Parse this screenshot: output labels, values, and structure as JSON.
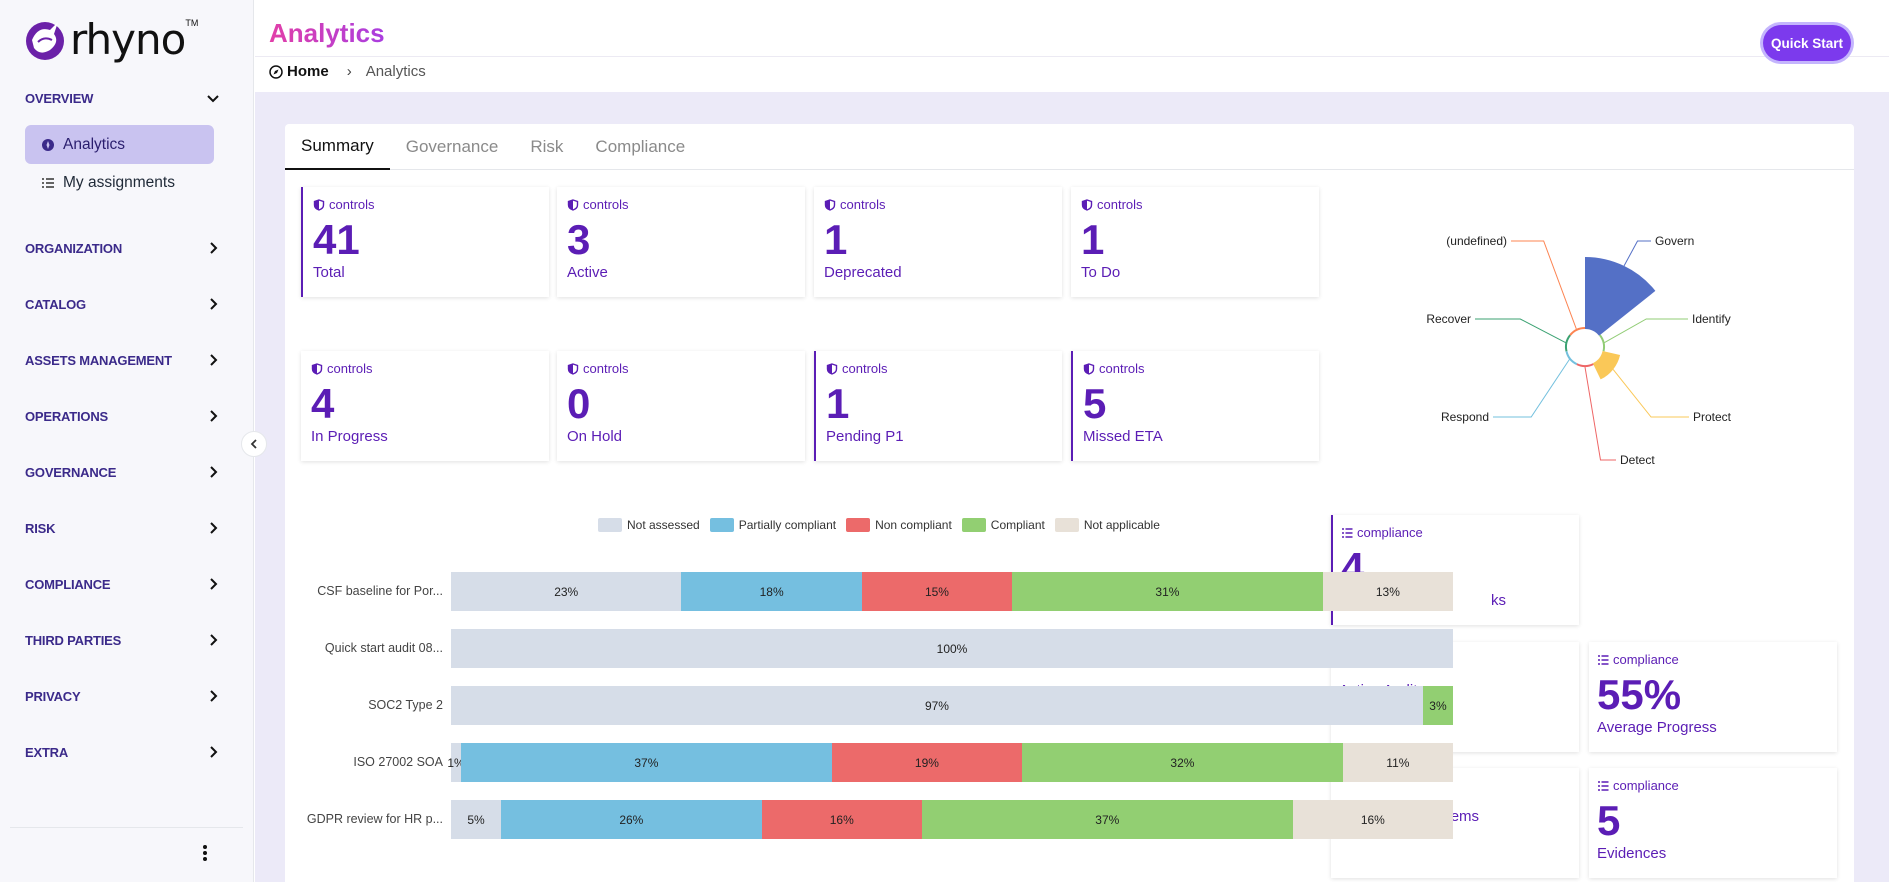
{
  "brand": {
    "name": "rhyno",
    "tm": "TM",
    "accent": "#7c3aed"
  },
  "sidebar": {
    "overview_label": "OVERVIEW",
    "items": [
      {
        "label": "Analytics",
        "active": true
      },
      {
        "label": "My assignments",
        "active": false
      }
    ],
    "sections": [
      "ORGANIZATION",
      "CATALOG",
      "ASSETS MANAGEMENT",
      "OPERATIONS",
      "GOVERNANCE",
      "RISK",
      "COMPLIANCE",
      "THIRD PARTIES",
      "PRIVACY",
      "EXTRA"
    ]
  },
  "header": {
    "title": "Analytics",
    "breadcrumb_home": "Home",
    "breadcrumb_separator": "›",
    "breadcrumb_current": "Analytics",
    "quick_start": "Quick Start"
  },
  "tabs": [
    "Summary",
    "Governance",
    "Risk",
    "Compliance"
  ],
  "control_kpis": [
    {
      "label": "controls",
      "value": "41",
      "sub": "Total"
    },
    {
      "label": "controls",
      "value": "3",
      "sub": "Active"
    },
    {
      "label": "controls",
      "value": "1",
      "sub": "Deprecated"
    },
    {
      "label": "controls",
      "value": "1",
      "sub": "To Do"
    },
    {
      "label": "controls",
      "value": "4",
      "sub": "In Progress"
    },
    {
      "label": "controls",
      "value": "0",
      "sub": "On Hold"
    },
    {
      "label": "controls",
      "value": "1",
      "sub": "Pending P1"
    },
    {
      "label": "controls",
      "value": "5",
      "sub": "Missed ETA"
    }
  ],
  "compliance_kpis": [
    {
      "label": "compliance",
      "value": "4",
      "sub": "ks"
    },
    {
      "label": "compliance",
      "value": "",
      "sub": "Active Audits"
    },
    {
      "label": "compliance",
      "value": "55%",
      "sub": "Average Progress"
    },
    {
      "label": "compliance",
      "value": "",
      "sub": "Non Compliant Items"
    },
    {
      "label": "compliance",
      "value": "5",
      "sub": "Evidences"
    }
  ],
  "chart_data": [
    {
      "type": "bar",
      "orientation": "horizontal-stacked-percent",
      "categories": [
        "CSF baseline for Por...",
        "Quick start audit 08...",
        "SOC2 Type 2",
        "ISO 27002 SOA",
        "GDPR review for HR p..."
      ],
      "series": [
        {
          "name": "Not assessed",
          "color": "#d6dde8",
          "values": [
            23,
            100,
            97,
            1,
            5
          ]
        },
        {
          "name": "Partially compliant",
          "color": "#75bfe0",
          "values": [
            18,
            0,
            0,
            37,
            26
          ]
        },
        {
          "name": "Non compliant",
          "color": "#ec6a6a",
          "values": [
            15,
            0,
            0,
            19,
            16
          ]
        },
        {
          "name": "Compliant",
          "color": "#92cf72",
          "values": [
            31,
            0,
            3,
            32,
            37
          ]
        },
        {
          "name": "Not applicable",
          "color": "#e8e1d8",
          "values": [
            13,
            0,
            0,
            11,
            16
          ]
        }
      ],
      "value_suffix": "%",
      "legend": "top"
    },
    {
      "type": "polar",
      "categories": [
        "Govern",
        "Identify",
        "Protect",
        "Detect",
        "Respond",
        "Recover",
        "(undefined)"
      ],
      "values": [
        4,
        0,
        1,
        0,
        0,
        0,
        0
      ],
      "colors": [
        "#5470c6",
        "#91cc75",
        "#fac858",
        "#ee6666",
        "#73c0de",
        "#3ba272",
        "#fc8452"
      ]
    }
  ]
}
